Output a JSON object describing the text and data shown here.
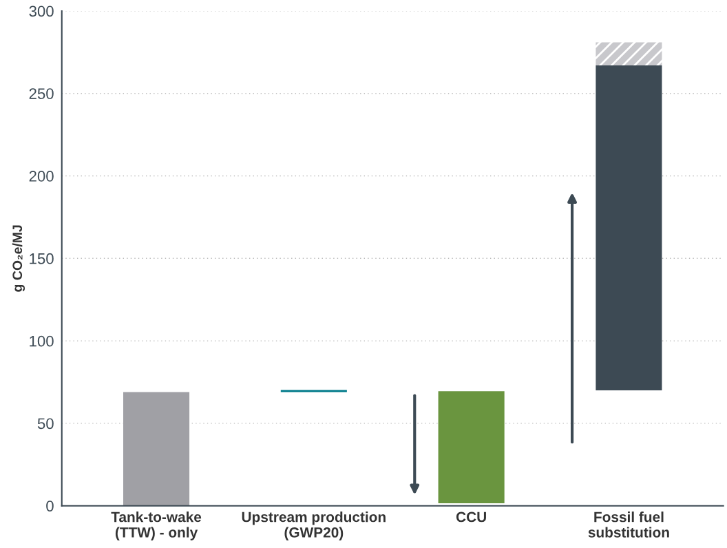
{
  "chart_data": {
    "type": "bar",
    "ylabel": "g CO₂e/MJ",
    "categories": [
      "Tank-to-wake\n(TTW) - only",
      "Upstream production\n(GWP20)",
      "CCU",
      "Fossil fuel\nsubstitution"
    ],
    "series": [
      {
        "colors": [
          "#a0a0a5",
          "#007a8a",
          "#6a953f",
          "#3d4a54"
        ],
        "base": [
          0,
          69,
          1.5,
          70
        ],
        "values": [
          69,
          1.2,
          68,
          197
        ]
      },
      {
        "color": "#c8c8cc",
        "base": [
          null,
          null,
          null,
          267
        ],
        "values": [
          null,
          null,
          null,
          14
        ]
      }
    ],
    "ylim": [
      0,
      300
    ],
    "yticks": [
      0,
      50,
      100,
      150,
      200,
      250,
      300
    ],
    "grid": "y",
    "legend": false
  }
}
